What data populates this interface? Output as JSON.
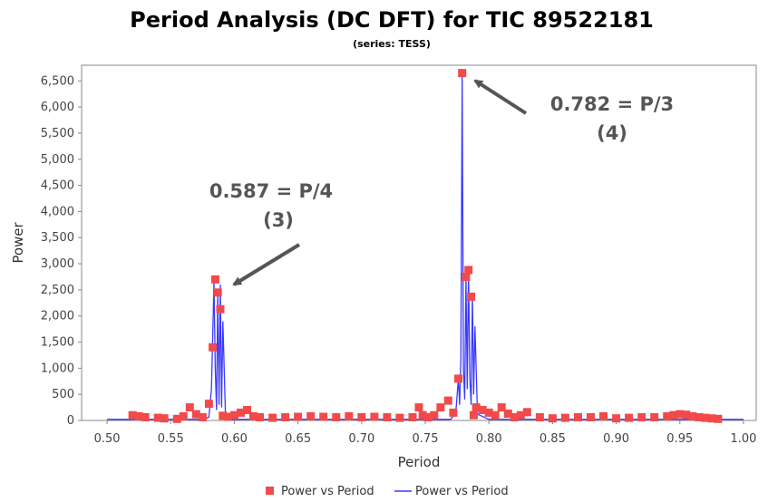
{
  "colors": {
    "marker": "#f24a4a",
    "line": "#3a3aff",
    "annotation": "#555555",
    "plot_border": "#888888"
  },
  "chart_data": {
    "type": "line",
    "title": "Period Analysis (DC DFT) for TIC 89522181",
    "subtitle": "(series: TESS)",
    "xlabel": "Period",
    "ylabel": "Power",
    "xlim": [
      0.48,
      1.01
    ],
    "ylim": [
      0,
      6800
    ],
    "grid": false,
    "legend_position": "bottom-center",
    "x_ticks": [
      "0.50",
      "0.55",
      "0.60",
      "0.65",
      "0.70",
      "0.75",
      "0.80",
      "0.85",
      "0.90",
      "0.95",
      "1.00"
    ],
    "x_tick_values": [
      0.5,
      0.55,
      0.6,
      0.65,
      0.7,
      0.75,
      0.8,
      0.85,
      0.9,
      0.95,
      1.0
    ],
    "y_ticks": [
      "0",
      "500",
      "1,000",
      "1,500",
      "2,000",
      "2,500",
      "3,000",
      "3,500",
      "4,000",
      "4,500",
      "5,000",
      "5,500",
      "6,000",
      "6,500"
    ],
    "y_tick_values": [
      0,
      500,
      1000,
      1500,
      2000,
      2500,
      3000,
      3500,
      4000,
      4500,
      5000,
      5500,
      6000,
      6500
    ],
    "series": [
      {
        "name": "Power vs Period",
        "kind": "scatter",
        "x": [
          0.52,
          0.525,
          0.53,
          0.54,
          0.545,
          0.555,
          0.56,
          0.565,
          0.57,
          0.575,
          0.58,
          0.583,
          0.585,
          0.587,
          0.589,
          0.591,
          0.595,
          0.6,
          0.605,
          0.61,
          0.615,
          0.62,
          0.63,
          0.64,
          0.65,
          0.66,
          0.67,
          0.68,
          0.69,
          0.7,
          0.71,
          0.72,
          0.73,
          0.74,
          0.745,
          0.748,
          0.752,
          0.757,
          0.762,
          0.768,
          0.772,
          0.776,
          0.779,
          0.782,
          0.784,
          0.786,
          0.788,
          0.79,
          0.795,
          0.8,
          0.805,
          0.81,
          0.815,
          0.82,
          0.825,
          0.83,
          0.84,
          0.85,
          0.86,
          0.87,
          0.88,
          0.89,
          0.9,
          0.91,
          0.92,
          0.93,
          0.94,
          0.945,
          0.95,
          0.955,
          0.96,
          0.965,
          0.97,
          0.975,
          0.98
        ],
        "y": [
          100,
          80,
          60,
          50,
          40,
          30,
          80,
          250,
          120,
          60,
          320,
          1400,
          2700,
          2450,
          2130,
          90,
          70,
          100,
          150,
          200,
          80,
          60,
          50,
          60,
          70,
          80,
          70,
          60,
          80,
          60,
          70,
          60,
          50,
          60,
          250,
          100,
          60,
          100,
          250,
          380,
          150,
          800,
          6650,
          2750,
          2880,
          2370,
          100,
          250,
          200,
          150,
          100,
          250,
          130,
          60,
          100,
          160,
          60,
          40,
          50,
          60,
          60,
          80,
          40,
          50,
          60,
          60,
          80,
          100,
          120,
          110,
          80,
          60,
          50,
          40,
          30
        ]
      },
      {
        "name": "Power vs Period",
        "kind": "line",
        "x": [
          0.5,
          0.575,
          0.58,
          0.582,
          0.584,
          0.585,
          0.586,
          0.587,
          0.588,
          0.589,
          0.59,
          0.591,
          0.593,
          0.598,
          0.77,
          0.774,
          0.776,
          0.777,
          0.778,
          0.779,
          0.78,
          0.781,
          0.782,
          0.783,
          0.784,
          0.785,
          0.786,
          0.787,
          0.788,
          0.789,
          0.791,
          0.8,
          1.0
        ],
        "y": [
          20,
          20,
          60,
          600,
          2650,
          1000,
          200,
          2450,
          300,
          2600,
          250,
          1900,
          150,
          20,
          20,
          150,
          800,
          300,
          1200,
          6650,
          1000,
          400,
          2750,
          600,
          2900,
          800,
          300,
          2400,
          500,
          1800,
          120,
          20,
          20
        ]
      }
    ],
    "annotations": [
      {
        "line1": "0.587 = P/4",
        "line2": "(3)",
        "points_to": [
          0.587,
          2700
        ]
      },
      {
        "line1": "0.782 = P/3",
        "line2": "(4)",
        "points_to": [
          0.779,
          6650
        ]
      }
    ],
    "legend": {
      "scatter_label": "Power vs Period",
      "line_label": "Power vs Period"
    }
  }
}
